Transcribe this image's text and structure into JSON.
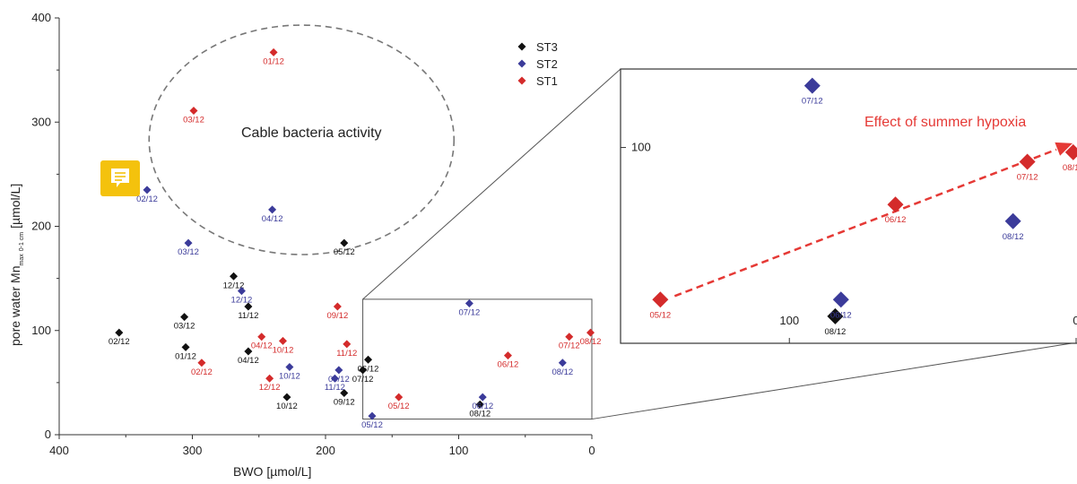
{
  "chart_data": {
    "type": "scatter",
    "xlabel": "BWO [µmol/L]",
    "ylabel": {
      "main": "pore water Mn",
      "sub": "max",
      "sub2": "0-1 cm",
      "unit": "[µmol/L]"
    },
    "x_ticks": [
      "400",
      "300",
      "200",
      "100",
      "0"
    ],
    "y_ticks": [
      "0",
      "100",
      "200",
      "300",
      "400"
    ],
    "xlim": [
      400,
      0
    ],
    "ylim": [
      0,
      400
    ],
    "legend": {
      "position": "top-center"
    },
    "colors": {
      "ST3": "#111111",
      "ST2": "#3b3b9a",
      "ST1": "#d42b2b"
    },
    "series": [
      {
        "name": "ST3",
        "points": [
          {
            "x": 355,
            "y": 98,
            "label": "02/12"
          },
          {
            "x": 306,
            "y": 113,
            "label": "03/12"
          },
          {
            "x": 305,
            "y": 84,
            "label": "01/12"
          },
          {
            "x": 258,
            "y": 80,
            "label": "04/12"
          },
          {
            "x": 269,
            "y": 152,
            "label": "12/12"
          },
          {
            "x": 258,
            "y": 123,
            "label": "11/12"
          },
          {
            "x": 229,
            "y": 36,
            "label": "10/12"
          },
          {
            "x": 186,
            "y": 40,
            "label": "09/12"
          },
          {
            "x": 186,
            "y": 184,
            "label": "05/12"
          },
          {
            "x": 168,
            "y": 72,
            "label": "06/12"
          },
          {
            "x": 172,
            "y": 62,
            "label": "07/12"
          },
          {
            "x": 84,
            "y": 29,
            "label": "08/12"
          }
        ]
      },
      {
        "name": "ST2",
        "points": [
          {
            "x": 334,
            "y": 235,
            "label": "02/12"
          },
          {
            "x": 303,
            "y": 184,
            "label": "03/12"
          },
          {
            "x": 240,
            "y": 216,
            "label": "04/12"
          },
          {
            "x": 263,
            "y": 138,
            "label": "12/12"
          },
          {
            "x": 227,
            "y": 65,
            "label": "10/12"
          },
          {
            "x": 190,
            "y": 62,
            "label": "09/12"
          },
          {
            "x": 193,
            "y": 54,
            "label": "11/12"
          },
          {
            "x": 165,
            "y": 18,
            "label": "05/12"
          },
          {
            "x": 92,
            "y": 126,
            "label": "07/12"
          },
          {
            "x": 82,
            "y": 36,
            "label": "06/12"
          },
          {
            "x": 22,
            "y": 69,
            "label": "08/12"
          }
        ]
      },
      {
        "name": "ST1",
        "points": [
          {
            "x": 239,
            "y": 367,
            "label": "01/12"
          },
          {
            "x": 299,
            "y": 311,
            "label": "03/12"
          },
          {
            "x": 293,
            "y": 69,
            "label": "02/12"
          },
          {
            "x": 248,
            "y": 94,
            "label": "04/12"
          },
          {
            "x": 232,
            "y": 90,
            "label": "10/12"
          },
          {
            "x": 242,
            "y": 54,
            "label": "12/12"
          },
          {
            "x": 191,
            "y": 123,
            "label": "09/12"
          },
          {
            "x": 184,
            "y": 87,
            "label": "11/12"
          },
          {
            "x": 145,
            "y": 36,
            "label": "05/12"
          },
          {
            "x": 63,
            "y": 76,
            "label": "06/12"
          },
          {
            "x": 17,
            "y": 94,
            "label": "07/12"
          },
          {
            "x": 1,
            "y": 98,
            "label": "08/12"
          }
        ]
      }
    ],
    "annotations": [
      {
        "text": "Cable bacteria activity"
      },
      {
        "text": "Effect of summer hypoxia"
      }
    ],
    "inset": {
      "xlim": [
        172,
        0
      ],
      "ylim": [
        15,
        130
      ],
      "y_tick_label": "100",
      "x_tick_labels": [
        "100",
        "0"
      ],
      "label_position": "below-right"
    }
  }
}
